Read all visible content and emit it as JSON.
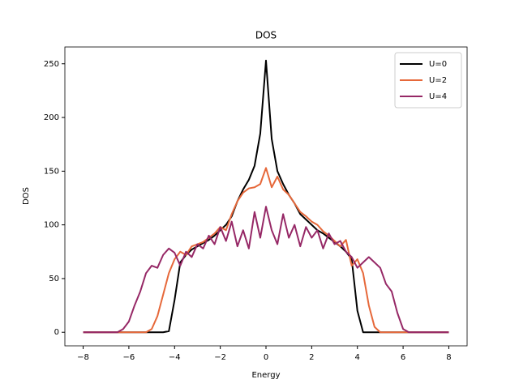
{
  "chart_data": {
    "type": "line",
    "title": "DOS",
    "xlabel": "Energy",
    "ylabel": "DOS",
    "x": [
      -8,
      -7.75,
      -7.5,
      -7.25,
      -7,
      -6.75,
      -6.5,
      -6.25,
      -6,
      -5.75,
      -5.5,
      -5.25,
      -5,
      -4.75,
      -4.5,
      -4.25,
      -4,
      -3.75,
      -3.5,
      -3.25,
      -3,
      -2.75,
      -2.5,
      -2.25,
      -2,
      -1.75,
      -1.5,
      -1.25,
      -1,
      -0.75,
      -0.5,
      -0.25,
      0,
      0.25,
      0.5,
      0.75,
      1,
      1.25,
      1.5,
      1.75,
      2,
      2.25,
      2.5,
      2.75,
      3,
      3.25,
      3.5,
      3.75,
      4,
      4.25,
      4.5,
      4.75,
      5,
      5.25,
      5.5,
      5.75,
      6,
      6.25,
      6.5,
      6.75,
      7,
      7.25,
      7.5,
      7.75,
      8
    ],
    "series": [
      {
        "name": "U=0",
        "color": "#000000",
        "values": [
          0,
          0,
          0,
          0,
          0,
          0,
          0,
          0,
          0,
          0,
          0,
          0,
          0,
          0,
          0,
          1,
          30,
          65,
          72,
          77,
          80,
          83,
          86,
          90,
          95,
          100,
          108,
          122,
          133,
          142,
          155,
          185,
          253,
          180,
          150,
          138,
          128,
          120,
          110,
          105,
          100,
          95,
          92,
          88,
          84,
          80,
          75,
          68,
          20,
          0,
          0,
          0,
          0,
          0,
          0,
          0,
          0,
          0,
          0,
          0,
          0,
          0,
          0,
          0,
          0
        ]
      },
      {
        "name": "U=2",
        "color": "#e6683a",
        "values": [
          0,
          0,
          0,
          0,
          0,
          0,
          0,
          0,
          0,
          0,
          0,
          0,
          3,
          15,
          35,
          55,
          68,
          75,
          72,
          80,
          82,
          84,
          88,
          92,
          98,
          95,
          110,
          122,
          130,
          134,
          135,
          138,
          153,
          135,
          145,
          133,
          128,
          120,
          112,
          108,
          103,
          100,
          94,
          90,
          85,
          80,
          86,
          62,
          68,
          55,
          25,
          5,
          0,
          0,
          0,
          0,
          0,
          0,
          0,
          0,
          0,
          0,
          0,
          0,
          0
        ]
      },
      {
        "name": "U=4",
        "color": "#962866",
        "values": [
          0,
          0,
          0,
          0,
          0,
          0,
          0,
          3,
          10,
          25,
          38,
          55,
          62,
          60,
          72,
          78,
          74,
          62,
          75,
          70,
          82,
          78,
          90,
          82,
          98,
          85,
          103,
          80,
          95,
          78,
          112,
          88,
          117,
          95,
          82,
          110,
          88,
          100,
          80,
          98,
          88,
          95,
          78,
          92,
          82,
          85,
          75,
          70,
          60,
          65,
          70,
          65,
          60,
          45,
          38,
          18,
          3,
          0,
          0,
          0,
          0,
          0,
          0,
          0,
          0
        ]
      }
    ],
    "xlim": [
      -8.8,
      8.8
    ],
    "ylim": [
      -12.65,
      265.65
    ],
    "xticks": [
      {
        "value": -8,
        "label": "−8"
      },
      {
        "value": -6,
        "label": "−6"
      },
      {
        "value": -4,
        "label": "−4"
      },
      {
        "value": -2,
        "label": "−2"
      },
      0,
      2,
      4,
      6,
      8
    ],
    "yticks": [
      0,
      50,
      100,
      150,
      200,
      250
    ],
    "legend": "upper right"
  }
}
